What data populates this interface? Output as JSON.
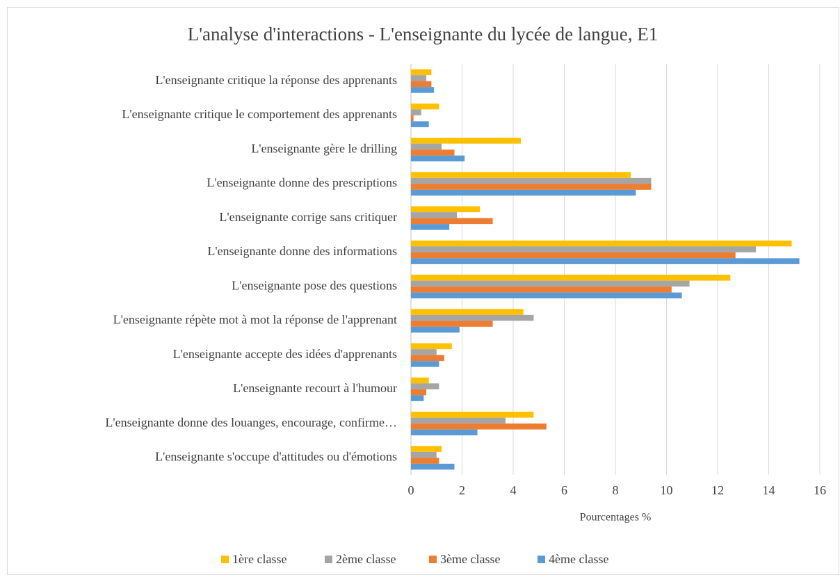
{
  "chart_data": {
    "type": "bar",
    "orientation": "horizontal",
    "title": "L'analyse d'interactions - L'enseignante du lycée de langue, E1",
    "x_label": "Pourcentages %",
    "categories": [
      "L'enseignante critique la réponse des apprenants",
      "L'enseignante critique le comportement des apprenants",
      "L'enseignante gère le drilling",
      "L'enseignante donne des prescriptions",
      "L'enseignante corrige sans critiquer",
      "L'enseignante donne des informations",
      "L'enseignante pose des questions",
      "L'enseignante répète mot à mot la réponse de l'apprenant",
      "L'enseignante accepte des idées d'apprenants",
      "L'enseignante recourt à l'humour",
      "L'enseignante donne des louanges, encourage, confirme…",
      "L'enseignante s'occupe d'attitudes ou d'émotions"
    ],
    "series": [
      {
        "name": "1ère classe",
        "color": "#FFC000",
        "values": [
          0.8,
          1.1,
          4.3,
          8.6,
          2.7,
          14.9,
          12.5,
          4.4,
          1.6,
          0.7,
          4.8,
          1.2
        ]
      },
      {
        "name": "2ème classe",
        "color": "#A5A5A5",
        "values": [
          0.6,
          0.4,
          1.2,
          9.4,
          1.8,
          13.5,
          10.9,
          4.8,
          1.0,
          1.1,
          3.7,
          1.0
        ]
      },
      {
        "name": "3ème classe",
        "color": "#ED7D31",
        "values": [
          0.8,
          0.1,
          1.7,
          9.4,
          3.2,
          12.7,
          10.2,
          3.2,
          1.3,
          0.6,
          5.3,
          1.1
        ]
      },
      {
        "name": "4ème classe",
        "color": "#5B9BD5",
        "values": [
          0.9,
          0.7,
          2.1,
          8.8,
          1.5,
          15.2,
          10.6,
          1.9,
          1.1,
          0.5,
          2.6,
          1.7
        ]
      }
    ],
    "xlim": [
      0,
      16
    ],
    "xticks": [
      0,
      2,
      4,
      6,
      8,
      10,
      12,
      14,
      16
    ],
    "grid": true,
    "legend": "bottom"
  }
}
